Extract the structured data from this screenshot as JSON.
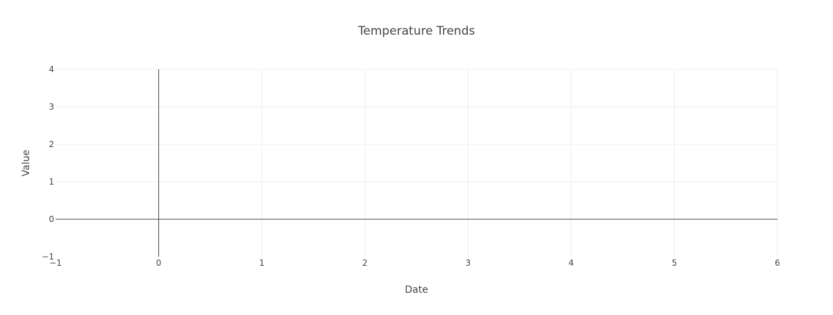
{
  "chart_data": {
    "type": "line",
    "title": "Temperature Trends",
    "xlabel": "Date",
    "ylabel": "Value",
    "xlim": [
      -1,
      6
    ],
    "ylim": [
      -1,
      4
    ],
    "x_ticks": [
      -1,
      0,
      1,
      2,
      3,
      4,
      5,
      6
    ],
    "y_ticks": [
      -1,
      0,
      1,
      2,
      3,
      4
    ],
    "x_tick_labels": [
      "−1",
      "0",
      "1",
      "2",
      "3",
      "4",
      "5",
      "6"
    ],
    "y_tick_labels": [
      "−1",
      "0",
      "1",
      "2",
      "3",
      "4"
    ],
    "grid": true,
    "series": [],
    "colors": {
      "text": "#444444",
      "grid": "#eeeeee",
      "zero_line": "#444444",
      "background": "#ffffff"
    }
  }
}
